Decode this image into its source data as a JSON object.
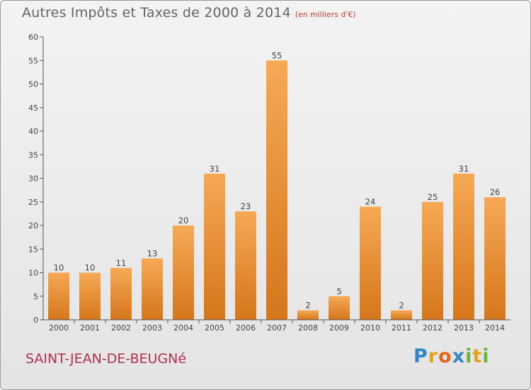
{
  "title": "Autres Impôts et Taxes de 2000 à 2014",
  "unit": "(en milliers d'€)",
  "place": "SAINT-JEAN-DE-BEUGNé",
  "logo": "Proxiti",
  "colors": {
    "bar": "#f2a04a",
    "bar_dark": "#d97a1d",
    "place": "#b0324f"
  },
  "chart_data": {
    "type": "bar",
    "title": "Autres Impôts et Taxes de 2000 à 2014",
    "subtitle": "(en milliers d'€)",
    "categories": [
      "2000",
      "2001",
      "2002",
      "2003",
      "2004",
      "2005",
      "2006",
      "2007",
      "2008",
      "2009",
      "2010",
      "2011",
      "2012",
      "2013",
      "2014"
    ],
    "values": [
      10,
      10,
      11,
      13,
      20,
      31,
      23,
      55,
      2,
      5,
      24,
      2,
      25,
      31,
      26
    ],
    "ylim": [
      0,
      60
    ],
    "yticks": [
      0,
      5,
      10,
      15,
      20,
      25,
      30,
      35,
      40,
      45,
      50,
      55,
      60
    ],
    "grid": false,
    "data_labels": true
  }
}
